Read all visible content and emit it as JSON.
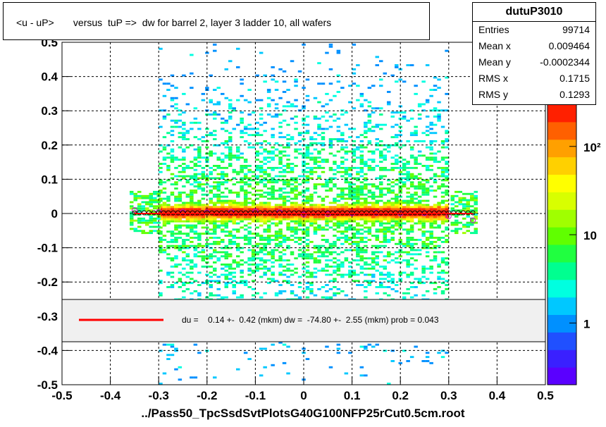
{
  "title": "<u - uP>       versus  tuP =>  dw for barrel 2, layer 3 ladder 10, all wafers",
  "stats": {
    "name": "dutuP3010",
    "rows": [
      {
        "label": "Entries",
        "value": "99714"
      },
      {
        "label": "Mean x",
        "value": "0.009464"
      },
      {
        "label": "Mean y",
        "value": "-0.0002344"
      },
      {
        "label": "RMS x",
        "value": "0.1715"
      },
      {
        "label": "RMS y",
        "value": "0.1293"
      }
    ]
  },
  "fit_legend": "du =    0.14 +-  0.42 (mkm) dw =  -74.80 +-  2.55 (mkm) prob = 0.043",
  "xtitle": "../Pass50_TpcSsdSvtPlotsG40G100NFP25rCut0.5cm.root",
  "colors": {
    "fit_line": "#ff0000",
    "legend_bg": "#f0f0f0",
    "profile_marker": "#cc00cc"
  },
  "chart_data": {
    "type": "heatmap",
    "xlim": [
      -0.5,
      0.5
    ],
    "ylim": [
      -0.5,
      0.5
    ],
    "xticks": [
      "-0.5",
      "-0.4",
      "-0.3",
      "-0.2",
      "-0.1",
      "0",
      "0.1",
      "0.2",
      "0.3",
      "0.4",
      "0.5"
    ],
    "yticks": [
      "-0.5",
      "-0.4",
      "-0.3",
      "-0.2",
      "-0.1",
      "0",
      "0.1",
      "0.2",
      "0.3",
      "0.4",
      "0.5"
    ],
    "z_scale": "log",
    "z_ticks": [
      {
        "label": "1",
        "value": 1
      },
      {
        "label": "10",
        "value": 10
      },
      {
        "label": "10²",
        "value": 100
      }
    ],
    "grid": true,
    "fit_line": {
      "x": [
        -0.35,
        0.35
      ],
      "y": [
        0.0,
        0.0
      ]
    },
    "profile": {
      "x": [
        -0.35,
        -0.3,
        -0.25,
        -0.2,
        -0.15,
        -0.1,
        -0.05,
        0.0,
        0.05,
        0.1,
        0.15,
        0.2,
        0.25,
        0.3,
        0.35
      ],
      "y": [
        0.01,
        0.005,
        0.004,
        0.003,
        0.005,
        0.006,
        0.004,
        -0.003,
        -0.002,
        0.001,
        0.002,
        0.0,
        0.001,
        -0.008,
        -0.02
      ]
    }
  }
}
